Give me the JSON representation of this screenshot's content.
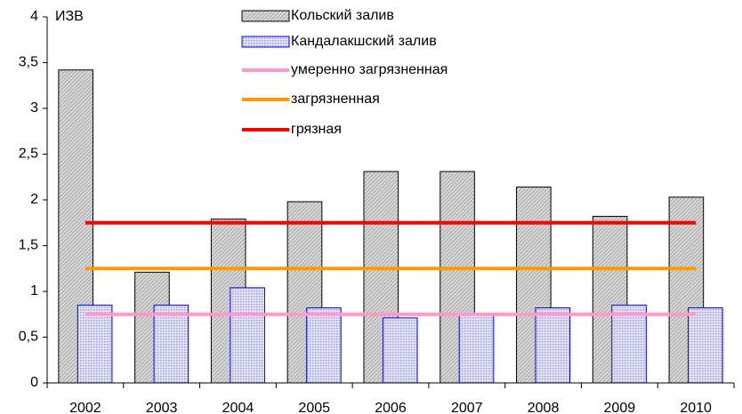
{
  "chart_data": {
    "type": "bar",
    "y_label": "ИЗВ",
    "categories": [
      "2002",
      "2003",
      "2004",
      "2005",
      "2006",
      "2007",
      "2008",
      "2009",
      "2010"
    ],
    "series": [
      {
        "name": "Кольский залив",
        "type": "bar",
        "color": "#c0c0c0",
        "values": [
          3.42,
          1.21,
          1.79,
          1.98,
          2.31,
          2.31,
          2.14,
          1.82,
          2.03
        ]
      },
      {
        "name": "Кандалакшский залив",
        "type": "bar",
        "color": "#c8c8f4",
        "values": [
          0.85,
          0.85,
          1.04,
          0.82,
          0.71,
          0.75,
          0.82,
          0.85,
          0.82
        ]
      },
      {
        "name": "умеренно загрязненная",
        "type": "line",
        "color": "#ff99cc",
        "values": [
          0.75,
          0.75,
          0.75,
          0.75,
          0.75,
          0.75,
          0.75,
          0.75,
          0.75
        ]
      },
      {
        "name": "загрязненная",
        "type": "line",
        "color": "#ff9900",
        "values": [
          1.25,
          1.25,
          1.25,
          1.25,
          1.25,
          1.25,
          1.25,
          1.25,
          1.25
        ]
      },
      {
        "name": "грязная",
        "type": "line",
        "color": "#ff0000",
        "values": [
          1.75,
          1.75,
          1.75,
          1.75,
          1.75,
          1.75,
          1.75,
          1.75,
          1.75
        ]
      }
    ],
    "ylim": [
      0,
      4
    ],
    "yticks": [
      0,
      {
        "value": 0.5,
        "label": "0,5"
      },
      1,
      {
        "value": 1.5,
        "label": "1,5"
      },
      2,
      {
        "value": 2.5,
        "label": "2,5"
      },
      3,
      {
        "value": 3.5,
        "label": "3,5"
      },
      4
    ],
    "grid": false
  }
}
